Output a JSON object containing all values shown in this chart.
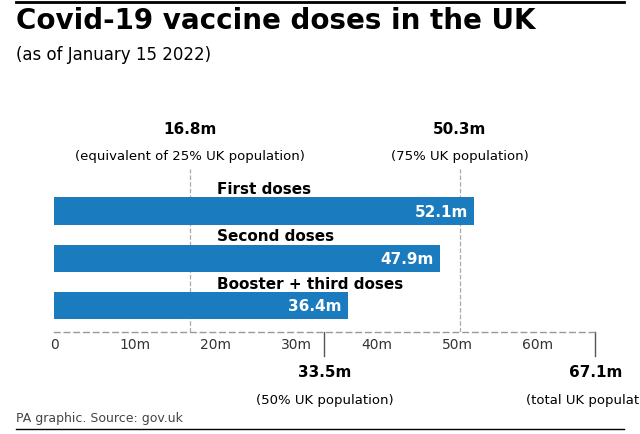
{
  "title": "Covid-19 vaccine doses in the UK",
  "subtitle": "(as of January 15 2022)",
  "source": "PA graphic. Source: gov.uk",
  "bar_color": "#1a7bbf",
  "bar_labels": [
    "First doses",
    "Second doses",
    "Booster + third doses"
  ],
  "bar_values": [
    52.1,
    47.9,
    36.4
  ],
  "bar_value_labels": [
    "52.1m",
    "47.9m",
    "36.4m"
  ],
  "xlim": [
    0,
    67.1
  ],
  "xticks": [
    0,
    10,
    20,
    30,
    40,
    50,
    60
  ],
  "xtick_labels": [
    "0",
    "10m",
    "20m",
    "30m",
    "40m",
    "50m",
    "60m"
  ],
  "top_annotations": [
    {
      "x": 16.8,
      "label_top": "16.8m",
      "label_bot": "(equivalent of 25% UK population)"
    },
    {
      "x": 50.3,
      "label_top": "50.3m",
      "label_bot": "(75% UK population)"
    }
  ],
  "bot_annotations": [
    {
      "x": 33.5,
      "label_top": "33.5m",
      "label_bot": "(50% UK population)"
    },
    {
      "x": 67.1,
      "label_top": "67.1m",
      "label_bot": "(total UK population)"
    }
  ],
  "bg_color": "#ffffff",
  "bar_text_color": "#ffffff",
  "bar_label_color": "#000000",
  "title_fontsize": 20,
  "subtitle_fontsize": 12,
  "bar_height": 0.58,
  "annotation_fontsize": 11,
  "tick_fontsize": 10,
  "source_fontsize": 9
}
